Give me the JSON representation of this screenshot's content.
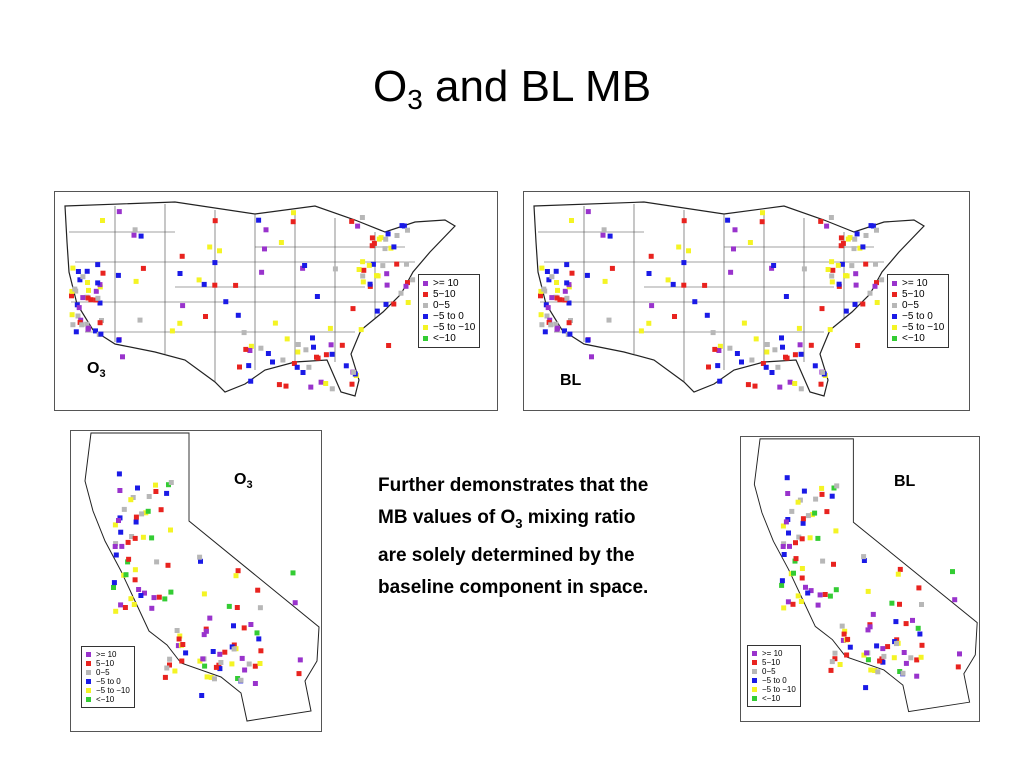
{
  "slide": {
    "title_prefix": "O",
    "title_sub": "3",
    "title_suffix": " and BL MB"
  },
  "legend": {
    "items": [
      {
        "label": ">= 10",
        "color": "#9933cc"
      },
      {
        "label": "5−10",
        "color": "#e8231f"
      },
      {
        "label": "0−5",
        "color": "#b7b7b7"
      },
      {
        "label": "−5 to 0",
        "color": "#1a1ae6"
      },
      {
        "label": "−5 to −10",
        "color": "#f4f424"
      },
      {
        "label": "<−10",
        "color": "#33cc33"
      }
    ]
  },
  "panels": {
    "us_o3": {
      "label": "O",
      "label_sub": "3"
    },
    "us_bl": {
      "label": "BL"
    },
    "ca_o3": {
      "label": "O",
      "label_sub": "3"
    },
    "ca_bl": {
      "label": "BL"
    }
  },
  "caption": {
    "line1": "Further demonstrates that the",
    "line2_pre": "MB values of O",
    "line2_sub": "3",
    "line2_post": " mixing ratio",
    "line3": "are solely determined by the",
    "line4": "baseline component in space."
  }
}
